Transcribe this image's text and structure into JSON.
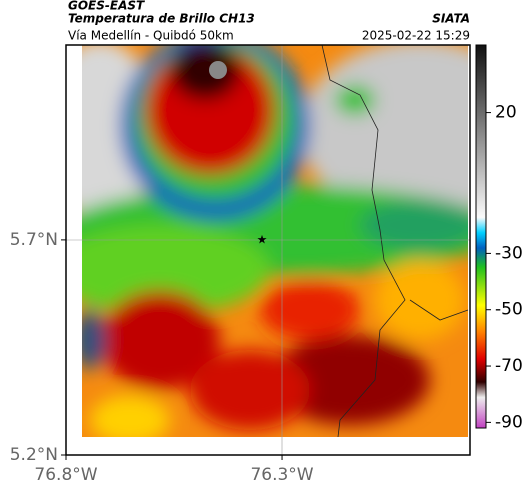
{
  "header": {
    "title": "GOES-EAST",
    "subtitle": "Temperatura de Brillo CH13",
    "route": "Vía Medellín - Quibdó 50km",
    "source": "SIATA",
    "datetime": "2025-02-22 15:29"
  },
  "map": {
    "xlim": [
      -76.8,
      -75.865
    ],
    "ylim": [
      5.2,
      6.153
    ],
    "xticks": [
      {
        "value": -76.8,
        "label": "76.8°W"
      },
      {
        "value": -76.3,
        "label": "76.3°W"
      }
    ],
    "yticks": [
      {
        "value": 5.7,
        "label": "5.7°N"
      },
      {
        "value": 5.2,
        "label": "5.2°N"
      }
    ]
  },
  "colorbar": {
    "lim": [
      44,
      -92
    ],
    "ticks": [
      20,
      -30,
      -50,
      -70,
      -90
    ]
  }
}
